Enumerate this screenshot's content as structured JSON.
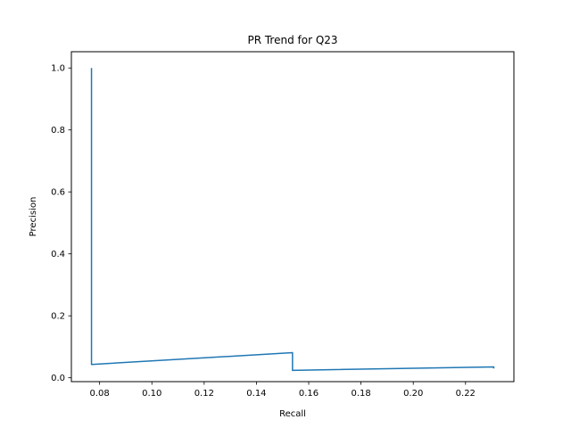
{
  "chart_data": {
    "type": "line",
    "title": "PR Trend for Q23",
    "xlabel": "Recall",
    "ylabel": "Precision",
    "xlim": [
      0.0692,
      0.2385
    ],
    "ylim": [
      -0.0125,
      1.0525
    ],
    "xticks": [
      0.08,
      0.1,
      0.12,
      0.14,
      0.16,
      0.18,
      0.2,
      0.22
    ],
    "xtick_labels": [
      "0.08",
      "0.10",
      "0.12",
      "0.14",
      "0.16",
      "0.18",
      "0.20",
      "0.22"
    ],
    "yticks": [
      0.0,
      0.2,
      0.4,
      0.6,
      0.8,
      1.0
    ],
    "ytick_labels": [
      "0.0",
      "0.2",
      "0.4",
      "0.6",
      "0.8",
      "1.0"
    ],
    "grid": false,
    "series": [
      {
        "color": "#1f77b4",
        "x": [
          0.0769,
          0.0769,
          0.1538,
          0.1538,
          0.2308,
          0.2308
        ],
        "y": [
          1.0,
          0.043,
          0.081,
          0.024,
          0.035,
          0.03
        ]
      }
    ]
  }
}
